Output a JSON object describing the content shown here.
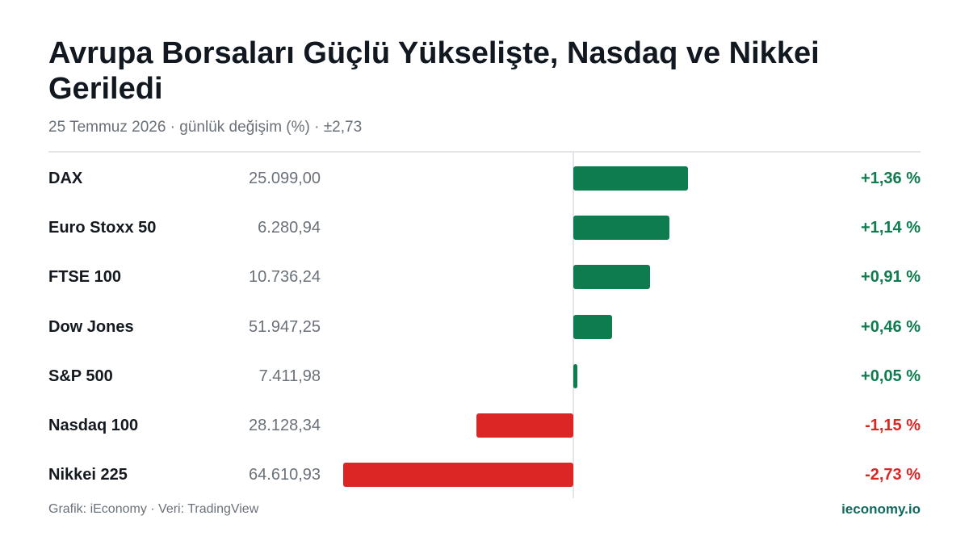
{
  "colors": {
    "positive": "#0e7c4f",
    "negative": "#dc2626",
    "brand": "#0e6b5e"
  },
  "header": {
    "title": "Avrupa Borsaları Güçlü Yükselişte, Nasdaq ve Nikkei Geriledi",
    "subtitle": "25 Temmuz 2026 · günlük değişim (%) · ±2,73"
  },
  "footer": {
    "source": "Grafik: iEconomy · Veri: TradingView",
    "brand": "ieconomy.io"
  },
  "chart_data": {
    "type": "bar",
    "orientation": "horizontal",
    "title": "Avrupa Borsaları Güçlü Yükselişte, Nasdaq ve Nikkei Geriledi",
    "subtitle": "25 Temmuz 2026 · günlük değişim (%) · ±2,73",
    "xlim": [
      -2.73,
      2.73
    ],
    "grid": false,
    "categories": [
      "DAX",
      "Euro Stoxx 50",
      "FTSE 100",
      "Dow Jones",
      "S&P 500",
      "Nasdaq 100",
      "Nikkei 225"
    ],
    "values": [
      1.36,
      1.14,
      0.91,
      0.46,
      0.05,
      -1.15,
      -2.73
    ],
    "rows": [
      {
        "name": "DAX",
        "level": "25.099,00",
        "change": 1.36,
        "change_label": "+1,36 %"
      },
      {
        "name": "Euro Stoxx 50",
        "level": "6.280,94",
        "change": 1.14,
        "change_label": "+1,14 %"
      },
      {
        "name": "FTSE 100",
        "level": "10.736,24",
        "change": 0.91,
        "change_label": "+0,91 %"
      },
      {
        "name": "Dow Jones",
        "level": "51.947,25",
        "change": 0.46,
        "change_label": "+0,46 %"
      },
      {
        "name": "S&P 500",
        "level": "7.411,98",
        "change": 0.05,
        "change_label": "+0,05 %"
      },
      {
        "name": "Nasdaq 100",
        "level": "28.128,34",
        "change": -1.15,
        "change_label": "-1,15 %"
      },
      {
        "name": "Nikkei 225",
        "level": "64.610,93",
        "change": -2.73,
        "change_label": "-2,73 %"
      }
    ]
  }
}
